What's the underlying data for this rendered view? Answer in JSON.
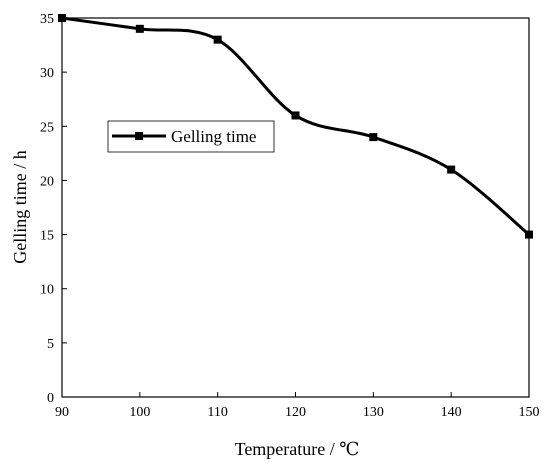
{
  "chart_data": {
    "type": "line",
    "x": [
      90,
      100,
      110,
      120,
      130,
      140,
      150
    ],
    "series": [
      {
        "name": "Gelling time",
        "values": [
          35,
          34,
          33,
          26,
          24,
          21,
          15
        ]
      }
    ],
    "xlabel": "Temperature / ℃",
    "ylabel": "Gelling time / h",
    "xlim": [
      90,
      150
    ],
    "ylim": [
      0,
      35
    ],
    "xticks": [
      90,
      100,
      110,
      120,
      130,
      140,
      150
    ],
    "yticks": [
      0,
      5,
      10,
      15,
      20,
      25,
      30,
      35
    ],
    "grid": false,
    "legend_position": "upper-left",
    "line_color": "#000000",
    "marker": "square"
  }
}
